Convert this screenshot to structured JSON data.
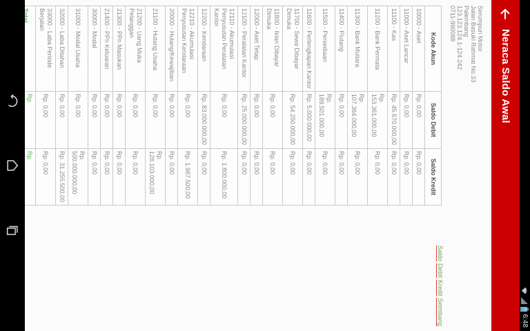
{
  "status_bar": {
    "time": "6:48"
  },
  "app_bar": {
    "title": "Neraca Saldo Awal"
  },
  "company": {
    "name": "Serumpun Motor",
    "address": "Jalan Basuki Rahmat No.33",
    "city": "Palembang",
    "tax_id": "123.123.124.1-124.242",
    "phone": "0711-990088"
  },
  "table": {
    "headers": [
      "Kode Akun",
      "Saldo Debit",
      "Saldo Kredit"
    ],
    "rows": [
      {
        "account": "10000 - Aset",
        "debit": "Rp. 0,00",
        "kredit": "Rp. 0,00"
      },
      {
        "account": "11000 - Aset Lancar",
        "debit": "Rp. 0,00",
        "kredit": "Rp. 0,00"
      },
      {
        "account": "11100 - Kas",
        "debit": "Rp. 45.670.000,00",
        "kredit": "Rp. 0,00"
      },
      {
        "account": "11200 - Bank Permata",
        "debit": "Rp. 153.361.000,00",
        "kredit": "Rp. 0,00"
      },
      {
        "account": "11300 - Bank Mutiara",
        "debit": "Rp. 107.364.000,00",
        "kredit": "Rp. 0,00"
      },
      {
        "account": "11400 - Piutang",
        "debit": "Rp. 0,00",
        "kredit": "Rp. 0,00"
      },
      {
        "account": "11500 - Persediaan",
        "debit": "Rp. 189.501.000,00",
        "kredit": "Rp. 0,00"
      },
      {
        "account": "11600 - Perlengkapan Kantor",
        "debit": "Rp. 5.000.000,00",
        "kredit": "Rp. 0,00"
      },
      {
        "account": "11700 - Sewa Dibayar Dimuka",
        "debit": "Rp. 54.250.000,00",
        "kredit": "Rp. 0,00"
      },
      {
        "account": "11800 - Iklan Dibayar Dimuka",
        "debit": "Rp. 0,00",
        "kredit": "Rp. 0,00"
      },
      {
        "account": "12000 - Aset Tetap",
        "debit": "Rp. 0,00",
        "kredit": "Rp. 0,00"
      },
      {
        "account": "12100 - Peralatan Kantor",
        "debit": "Rp. 25.000.000,00",
        "kredit": "Rp. 0,00"
      },
      {
        "account": "12110 - Akumulasi Penyusutan Peralatan Kantor",
        "debit": "Rp. 0,00",
        "kredit": "Rp. 1.800.000,00"
      },
      {
        "account": "12200 - Kendaraan",
        "debit": "Rp. 83.000.000,00",
        "kredit": "Rp. 0,00"
      },
      {
        "account": "12210 - Akumulasi Penyusutan Kendaraan",
        "debit": "Rp. 0,00",
        "kredit": "Rp. 1.987.500,00"
      },
      {
        "account": "20000 - Hutang/Kewajiban",
        "debit": "Rp. 0,00",
        "kredit": "Rp. 0,00"
      },
      {
        "account": "21100 - Hutang Usaha",
        "debit": "Rp. 0,00",
        "kredit": "Rp. 128.103.000,00"
      },
      {
        "account": "21200 - Uang Muka Pelanggan",
        "debit": "Rp. 0,00",
        "kredit": "Rp. 0,00"
      },
      {
        "account": "21300 - PPn Masukan",
        "debit": "Rp. 0,00",
        "kredit": "Rp. 0,00"
      },
      {
        "account": "21400 - PPn Keluaran",
        "debit": "Rp. 0,00",
        "kredit": "Rp. 0,00"
      },
      {
        "account": "30000 - Modal",
        "debit": "Rp. 0,00",
        "kredit": "Rp. 0,00"
      },
      {
        "account": "31000 - Modal Usaha",
        "debit": "Rp. 0,00",
        "kredit": "Rp. 500.000.000,00"
      },
      {
        "account": "32000 - Laba Ditahan",
        "debit": "Rp. 0,00",
        "kredit": "Rp. 31.255.500,00"
      },
      {
        "account": "33000 - Laba Periode Berjalan",
        "debit": "Rp. 0,00",
        "kredit": "Rp. 0,00"
      }
    ],
    "total": {
      "label": "Total",
      "debit": "Rp. 663.146.000,00",
      "kredit": "Rp. 663.146.000,00"
    }
  },
  "footer_link": {
    "words": [
      "Saldo",
      "Debit",
      "Kredit",
      "Seimbang"
    ]
  },
  "colors": {
    "app_bar": "#cb0000",
    "total_green": "#5cb360",
    "link_green": "#74a45c",
    "link_underline": "#e53935",
    "table_border": "#c8c8c8",
    "table_text": "#8a8a8a",
    "table_header_text": "#4f4f4f"
  }
}
